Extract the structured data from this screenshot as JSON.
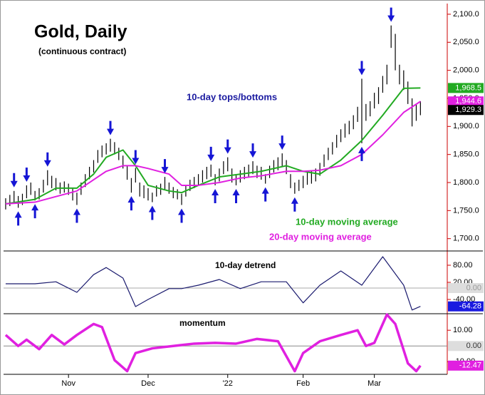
{
  "chart_data": {
    "type": "financial",
    "title": "Gold, Daily",
    "subtitle": "(continuous contract)",
    "xlim": [
      -0.5,
      105.4
    ],
    "xticks": [
      {
        "value": 15,
        "label": "Nov"
      },
      {
        "value": 34,
        "label": "Dec"
      },
      {
        "value": 53,
        "label": "'22"
      },
      {
        "value": 71,
        "label": "Feb"
      },
      {
        "value": 88,
        "label": "Mar"
      }
    ],
    "price": {
      "ylim": [
        1678,
        2119
      ],
      "yticks": [
        {
          "value": 2100,
          "label": "2,100.0"
        },
        {
          "value": 2050,
          "label": "2,050.0"
        },
        {
          "value": 2000,
          "label": "2,000.0"
        },
        {
          "value": 1950,
          "label": "1,950.0"
        },
        {
          "value": 1900,
          "label": "1,900.0"
        },
        {
          "value": 1850,
          "label": "1,850.0"
        },
        {
          "value": 1800,
          "label": "1,800.0"
        },
        {
          "value": 1750,
          "label": "1,750.0"
        },
        {
          "value": 1700,
          "label": "1,700.0"
        }
      ],
      "high": [
        1772,
        1778,
        1785,
        1776,
        1780,
        1795,
        1800,
        1785,
        1790,
        1805,
        1822,
        1812,
        1808,
        1800,
        1802,
        1798,
        1790,
        1782,
        1800,
        1815,
        1828,
        1840,
        1858,
        1866,
        1870,
        1878,
        1872,
        1862,
        1848,
        1830,
        1808,
        1826,
        1800,
        1795,
        1790,
        1782,
        1795,
        1798,
        1810,
        1800,
        1792,
        1788,
        1780,
        1795,
        1805,
        1810,
        1815,
        1822,
        1828,
        1832,
        1815,
        1825,
        1838,
        1845,
        1825,
        1815,
        1822,
        1828,
        1832,
        1838,
        1830,
        1828,
        1815,
        1830,
        1840,
        1845,
        1852,
        1840,
        1815,
        1800,
        1805,
        1812,
        1818,
        1820,
        1825,
        1835,
        1850,
        1862,
        1872,
        1885,
        1895,
        1905,
        1910,
        1920,
        1935,
        1985,
        1940,
        1945,
        1960,
        1970,
        1990,
        2010,
        2080,
        2065,
        2010,
        2000,
        1980,
        1950,
        1940,
        1945
      ],
      "low": [
        1752,
        1758,
        1762,
        1755,
        1760,
        1772,
        1778,
        1768,
        1770,
        1782,
        1795,
        1790,
        1786,
        1780,
        1782,
        1778,
        1768,
        1760,
        1778,
        1792,
        1806,
        1818,
        1835,
        1845,
        1850,
        1855,
        1850,
        1840,
        1825,
        1805,
        1782,
        1800,
        1775,
        1772,
        1768,
        1765,
        1775,
        1778,
        1788,
        1780,
        1772,
        1770,
        1760,
        1775,
        1785,
        1790,
        1795,
        1800,
        1806,
        1810,
        1795,
        1802,
        1815,
        1820,
        1800,
        1795,
        1800,
        1806,
        1810,
        1815,
        1808,
        1805,
        1798,
        1808,
        1818,
        1822,
        1828,
        1815,
        1790,
        1780,
        1785,
        1790,
        1796,
        1798,
        1802,
        1812,
        1828,
        1840,
        1850,
        1862,
        1872,
        1880,
        1886,
        1895,
        1908,
        1870,
        1910,
        1918,
        1932,
        1940,
        1960,
        1975,
        2040,
        2000,
        1975,
        1965,
        1940,
        1900,
        1910,
        1920
      ],
      "last_close": {
        "value": 1929.3,
        "label": "1,929.3"
      },
      "tops": [
        2,
        5,
        10,
        25,
        31,
        38,
        49,
        53,
        59,
        66,
        85,
        92
      ],
      "bottoms": [
        3,
        7,
        17,
        30,
        35,
        42,
        50,
        55,
        62,
        69,
        85
      ],
      "tops_label": "10-day tops/bottoms",
      "series": [
        {
          "name": "10-day moving average",
          "color": "#22aa22",
          "x": [
            0,
            7,
            12,
            17,
            21,
            24,
            28,
            31,
            34,
            39,
            42,
            46,
            51,
            56,
            61,
            67,
            71,
            75,
            80,
            85,
            90,
            95,
            99
          ],
          "values": [
            1762,
            1770,
            1790,
            1790,
            1815,
            1845,
            1858,
            1830,
            1795,
            1785,
            1782,
            1795,
            1810,
            1815,
            1820,
            1830,
            1820,
            1815,
            1840,
            1875,
            1920,
            1968,
            1968.5
          ],
          "badge": {
            "value": 1968.5,
            "label": "1,968.5"
          }
        },
        {
          "name": "20-day moving average",
          "color": "#e020e0",
          "x": [
            0,
            7,
            12,
            17,
            21,
            24,
            28,
            31,
            34,
            39,
            42,
            46,
            51,
            56,
            61,
            67,
            71,
            75,
            80,
            85,
            90,
            95,
            99
          ],
          "values": [
            1762,
            1765,
            1775,
            1785,
            1805,
            1820,
            1830,
            1830,
            1825,
            1815,
            1795,
            1795,
            1800,
            1808,
            1812,
            1820,
            1820,
            1822,
            1830,
            1850,
            1885,
            1925,
            1944.6
          ],
          "badge": {
            "value": 1944.6,
            "label": "1,944.6"
          }
        }
      ]
    },
    "detrend": {
      "title": "10-day detrend",
      "ylim": [
        -90,
        130
      ],
      "yticks": [
        {
          "value": 80,
          "label": "80.00"
        },
        {
          "value": 20,
          "label": "20.00"
        },
        {
          "value": -40,
          "label": "-40.00"
        }
      ],
      "zero_badge": {
        "value": 0,
        "label": "0.00"
      },
      "color": "#1a1a6e",
      "x": [
        0,
        7,
        12,
        17,
        21,
        24,
        28,
        31,
        34,
        39,
        42,
        46,
        51,
        56,
        61,
        67,
        71,
        75,
        80,
        85,
        90,
        95,
        97,
        99
      ],
      "values": [
        15,
        15,
        22,
        -15,
        47,
        72,
        35,
        -65,
        -40,
        -2,
        -2,
        10,
        30,
        -2,
        22,
        22,
        -52,
        10,
        60,
        10,
        110,
        10,
        -77,
        -64.28
      ],
      "badge": {
        "value": -64.28,
        "label": "-64.28"
      }
    },
    "momentum": {
      "title": "momentum",
      "ylim": [
        -18,
        20.5
      ],
      "yticks": [
        {
          "value": 10,
          "label": "10.00"
        },
        {
          "value": -10,
          "label": "-10.00"
        }
      ],
      "zero_badge": {
        "value": 0,
        "label": "0.00"
      },
      "color": "#e020e0",
      "x": [
        0,
        3,
        5,
        8,
        11,
        14,
        17,
        21,
        23,
        26,
        29,
        31,
        35,
        40,
        45,
        50,
        55,
        60,
        65,
        69,
        71,
        75,
        80,
        84,
        86,
        88,
        91,
        93,
        96,
        98,
        99
      ],
      "values": [
        7,
        0,
        4,
        -2,
        7,
        1,
        7,
        14,
        12,
        -9,
        -16,
        -4.5,
        -1.5,
        0,
        1.5,
        2,
        1.5,
        4.5,
        3,
        -16,
        -4.5,
        3,
        7,
        10,
        0,
        2,
        20,
        14,
        -11,
        -16,
        -12.47
      ],
      "badge": {
        "value": -12.47,
        "label": "-12.47"
      }
    }
  }
}
